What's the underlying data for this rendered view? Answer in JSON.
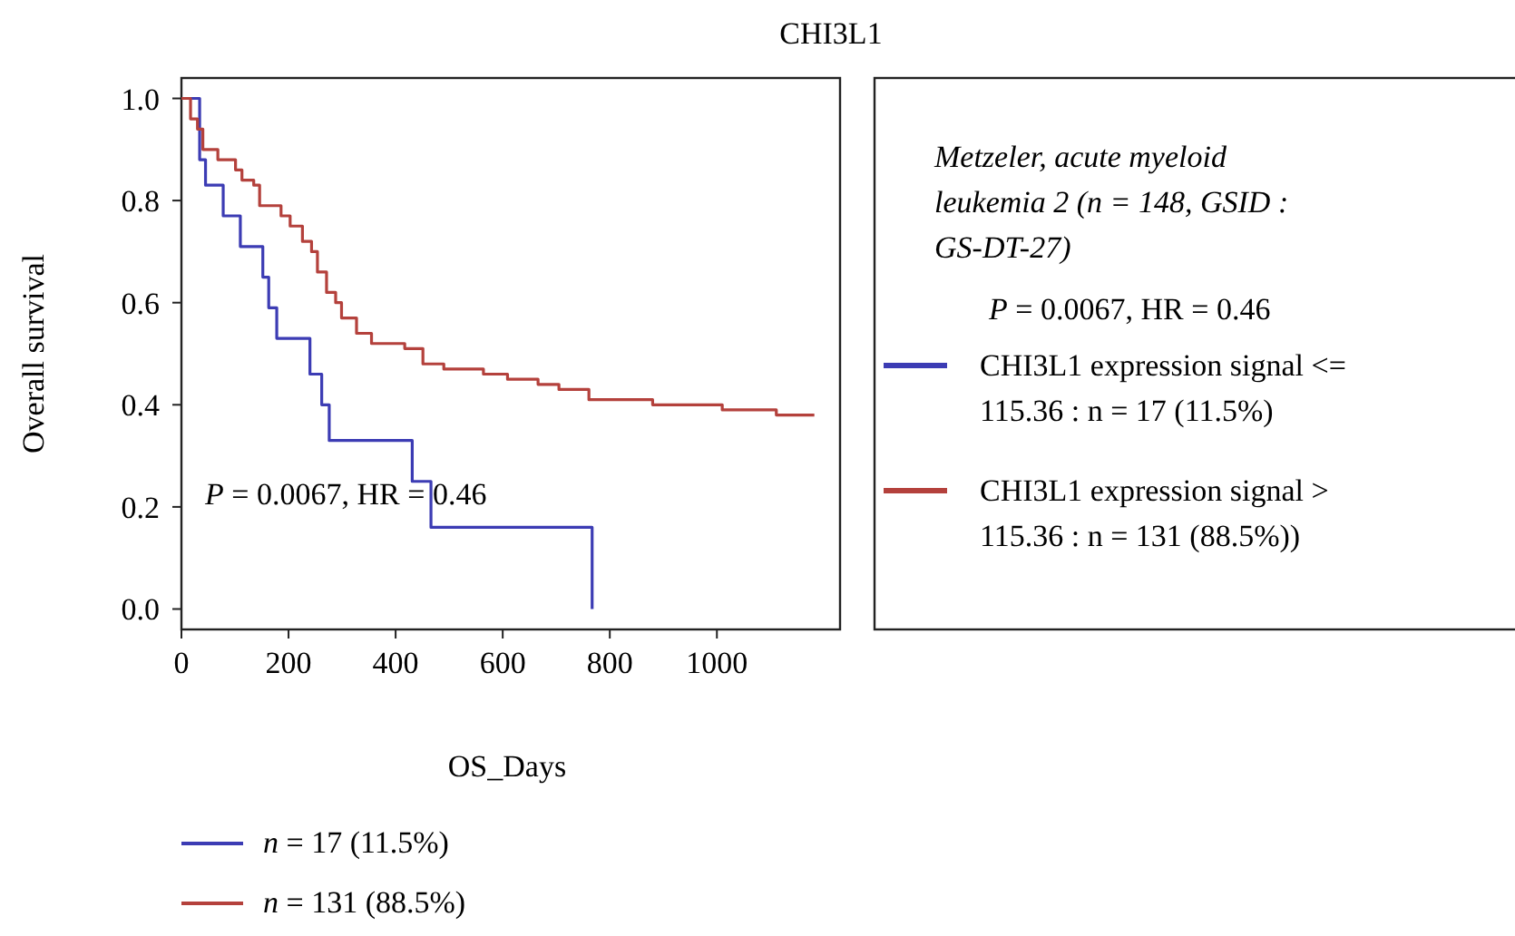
{
  "chart_data": {
    "type": "step",
    "title": "CHI3L1",
    "xlabel": "OS_Days",
    "ylabel": "Overall survival",
    "legend_title": "Metzeler, acute myeloid leukemia 2 (n = 148, GSID : GS-DT-27)",
    "legend": "right",
    "grid": false,
    "xlim": [
      0,
      1230
    ],
    "xticks": [
      0,
      200,
      400,
      600,
      800,
      1000
    ],
    "ylim": [
      -0.04,
      1.04
    ],
    "yticks": [
      {
        "value": 0,
        "label": "0.0"
      },
      0.2,
      0.4,
      0.6,
      0.8,
      {
        "value": 1,
        "label": "1.0"
      }
    ],
    "annotations": [
      "P = 0.0067, HR = 0.46",
      "P = 0.0067, HR = 0.46",
      "n = 17 (11.5%)",
      "n = 131 (88.5%)"
    ],
    "series": [
      {
        "name": "CHI3L1 expression signal <= 115.36 : n = 17 (11.5%)",
        "color": "#3c3cb4",
        "x": [
          0,
          34,
          45,
          78,
          110,
          152,
          163,
          178,
          240,
          262,
          276,
          431,
          466,
          767
        ],
        "values": [
          1,
          0.88,
          0.83,
          0.77,
          0.71,
          0.65,
          0.59,
          0.53,
          0.46,
          0.4,
          0.33,
          0.25,
          0.16,
          0
        ]
      },
      {
        "name": "CHI3L1 expression signal > 115.36 : n = 131 (88.5%))",
        "color": "#b4413c",
        "x": [
          0,
          17,
          30,
          40,
          68,
          101,
          113,
          135,
          146,
          186,
          203,
          226,
          243,
          254,
          271,
          288,
          299,
          327,
          355,
          417,
          451,
          490,
          564,
          609,
          666,
          705,
          761,
          880,
          1010,
          1111,
          1182
        ],
        "values": [
          1,
          0.96,
          0.94,
          0.9,
          0.88,
          0.86,
          0.84,
          0.83,
          0.79,
          0.77,
          0.75,
          0.72,
          0.7,
          0.66,
          0.62,
          0.6,
          0.57,
          0.54,
          0.52,
          0.51,
          0.48,
          0.47,
          0.46,
          0.45,
          0.44,
          0.43,
          0.41,
          0.4,
          0.39,
          0.38,
          0.38
        ]
      }
    ]
  }
}
